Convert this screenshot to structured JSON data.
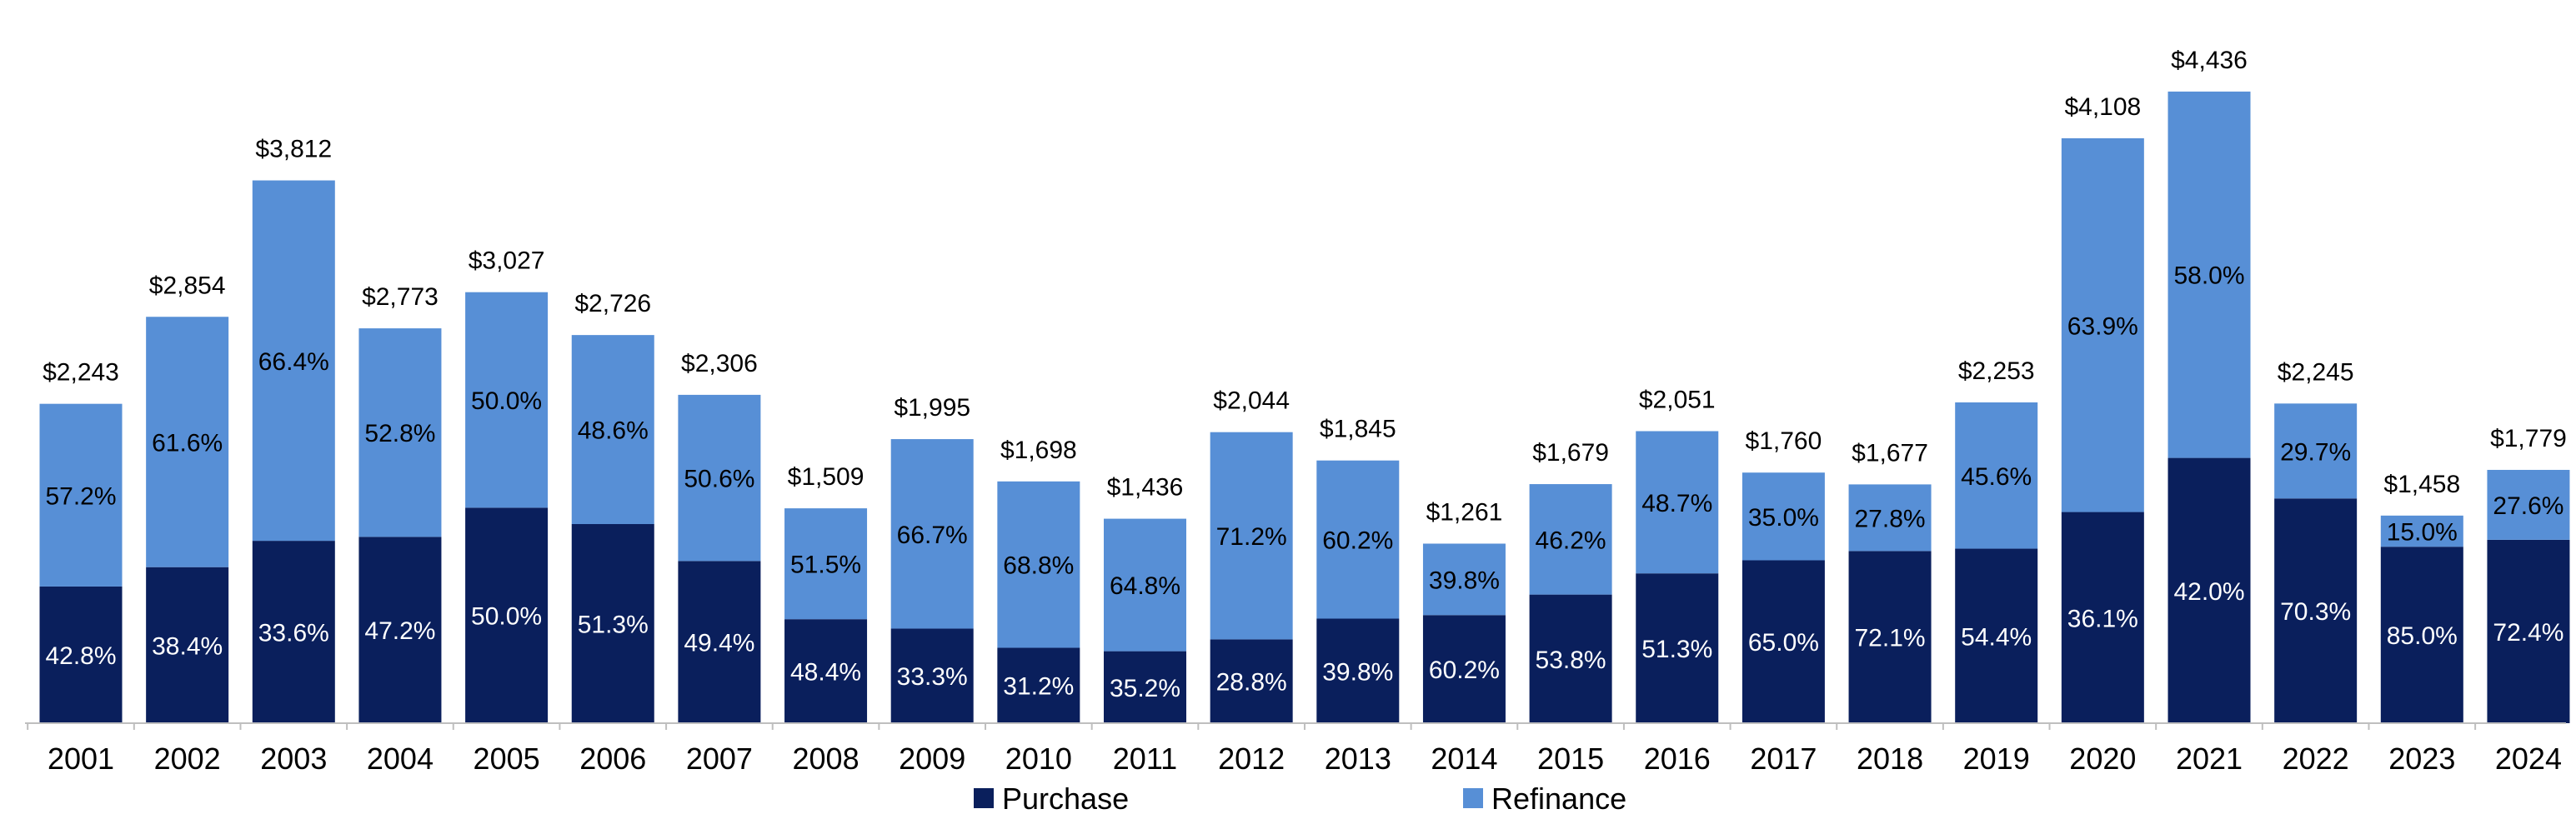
{
  "chart_data": {
    "type": "bar",
    "stacked": true,
    "title": "",
    "xlabel": "",
    "ylabel": "",
    "ylim": [
      0,
      4600
    ],
    "grid": false,
    "legend_position": "bottom",
    "colors": {
      "purchase": "#0a1f5c",
      "refinance": "#578fd6",
      "axis": "#bfbfbf"
    },
    "categories": [
      "2001",
      "2002",
      "2003",
      "2004",
      "2005",
      "2006",
      "2007",
      "2008",
      "2009",
      "2010",
      "2011",
      "2012",
      "2013",
      "2014",
      "2015",
      "2016",
      "2017",
      "2018",
      "2019",
      "2020",
      "2021",
      "2022",
      "2023",
      "2024"
    ],
    "totals": [
      2243,
      2854,
      3812,
      2773,
      3027,
      2726,
      2306,
      1509,
      1995,
      1698,
      1436,
      2044,
      1845,
      1261,
      1679,
      2051,
      1760,
      1677,
      2253,
      4108,
      4436,
      2245,
      1458,
      1779
    ],
    "total_labels": [
      "$2,243",
      "$2,854",
      "$3,812",
      "$2,773",
      "$3,027",
      "$2,726",
      "$2,306",
      "$1,509",
      "$1,995",
      "$1,698",
      "$1,436",
      "$2,044",
      "$1,845",
      "$1,261",
      "$1,679",
      "$2,051",
      "$1,760",
      "$1,677",
      "$2,253",
      "$4,108",
      "$4,436",
      "$2,245",
      "$1,458",
      "$1,779"
    ],
    "series": [
      {
        "name": "Purchase",
        "key": "purchase",
        "share_pct": [
          42.8,
          38.4,
          33.6,
          47.2,
          50.0,
          51.3,
          49.4,
          48.4,
          33.3,
          31.2,
          35.2,
          28.8,
          39.8,
          60.2,
          53.8,
          51.3,
          65.0,
          72.1,
          54.4,
          36.1,
          42.0,
          70.3,
          85.0,
          72.4
        ],
        "labels": [
          "42.8%",
          "38.4%",
          "33.6%",
          "47.2%",
          "50.0%",
          "51.3%",
          "49.4%",
          "48.4%",
          "33.3%",
          "31.2%",
          "35.2%",
          "28.8%",
          "39.8%",
          "60.2%",
          "53.8%",
          "51.3%",
          "65.0%",
          "72.1%",
          "54.4%",
          "36.1%",
          "42.0%",
          "70.3%",
          "85.0%",
          "72.4%"
        ]
      },
      {
        "name": "Refinance",
        "key": "refinance",
        "share_pct": [
          57.2,
          61.6,
          66.4,
          52.8,
          50.0,
          48.6,
          50.6,
          51.5,
          66.7,
          68.8,
          64.8,
          71.2,
          60.2,
          39.8,
          46.2,
          48.7,
          35.0,
          27.8,
          45.6,
          63.9,
          58.0,
          29.7,
          15.0,
          27.6
        ],
        "labels": [
          "57.2%",
          "61.6%",
          "66.4%",
          "52.8%",
          "50.0%",
          "48.6%",
          "50.6%",
          "51.5%",
          "66.7%",
          "68.8%",
          "64.8%",
          "71.2%",
          "60.2%",
          "39.8%",
          "46.2%",
          "48.7%",
          "35.0%",
          "27.8%",
          "45.6%",
          "63.9%",
          "58.0%",
          "29.7%",
          "15.0%",
          "27.6%"
        ]
      }
    ],
    "legend": {
      "purchase_label": "Purchase",
      "refinance_label": "Refinance"
    }
  }
}
